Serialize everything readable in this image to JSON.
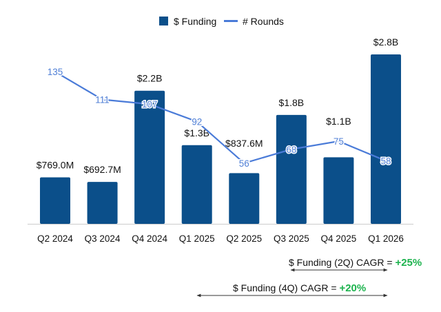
{
  "chart_data": {
    "type": "bar+line",
    "categories": [
      "Q2 2024",
      "Q3 2024",
      "Q4 2024",
      "Q1 2025",
      "Q2 2025",
      "Q3 2025",
      "Q4 2025",
      "Q1 2026"
    ],
    "series": [
      {
        "name": "$ Funding",
        "type": "bar",
        "color": "#0b4f8a",
        "values": [
          769.0,
          692.7,
          2200,
          1300,
          837.6,
          1800,
          1100,
          2800
        ],
        "unit": "$M",
        "labels": [
          "$769.0M",
          "$692.7M",
          "$2.2B",
          "$1.3B",
          "$837.6M",
          "$1.8B",
          "$1.1B",
          "$2.8B"
        ]
      },
      {
        "name": "# Rounds",
        "type": "line",
        "color": "#4a7bd8",
        "values": [
          135,
          111,
          107,
          92,
          56,
          68,
          75,
          58
        ],
        "labels": [
          "135",
          "111",
          "107",
          "92",
          "56",
          "68",
          "75",
          "58"
        ]
      }
    ],
    "legend": {
      "placement": "top",
      "items": [
        "$ Funding",
        "# Rounds"
      ]
    },
    "grid": false,
    "annotations": [
      {
        "text": "$ Funding (2Q) CAGR = ",
        "value": "+25%",
        "from": "Q3 2025",
        "to": "Q1 2026",
        "value_color": "#1db34e"
      },
      {
        "text": "$ Funding (4Q) CAGR = ",
        "value": "+20%",
        "from": "Q1 2025",
        "to": "Q1 2026",
        "value_color": "#1db34e"
      }
    ]
  }
}
